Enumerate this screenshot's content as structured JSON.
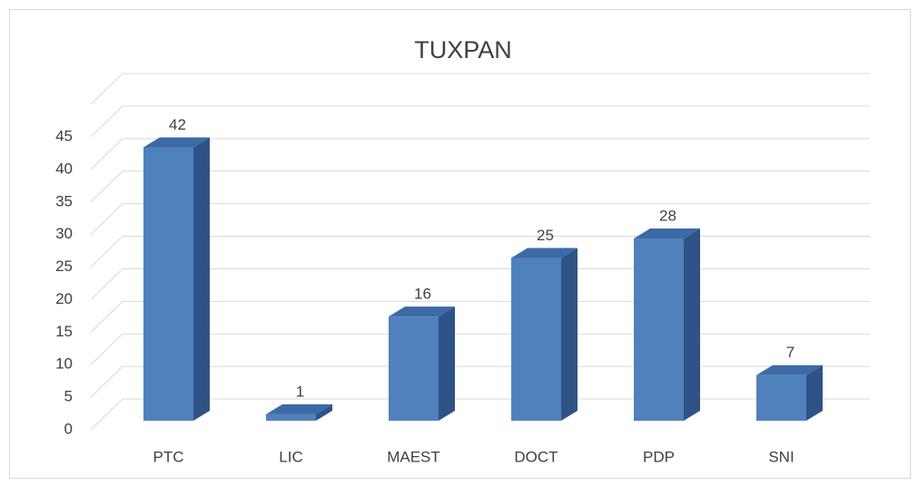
{
  "chart_data": {
    "type": "bar3d",
    "title": "TUXPAN",
    "categories": [
      "PTC",
      "LIC",
      "MAEST",
      "DOCT",
      "PDP",
      "SNI"
    ],
    "values": [
      42,
      1,
      16,
      25,
      28,
      7
    ],
    "color": "#4f81bd",
    "ylim": [
      0,
      50
    ],
    "yticks": [
      0,
      5,
      10,
      15,
      20,
      25,
      30,
      35,
      40,
      45
    ],
    "grid": true
  }
}
